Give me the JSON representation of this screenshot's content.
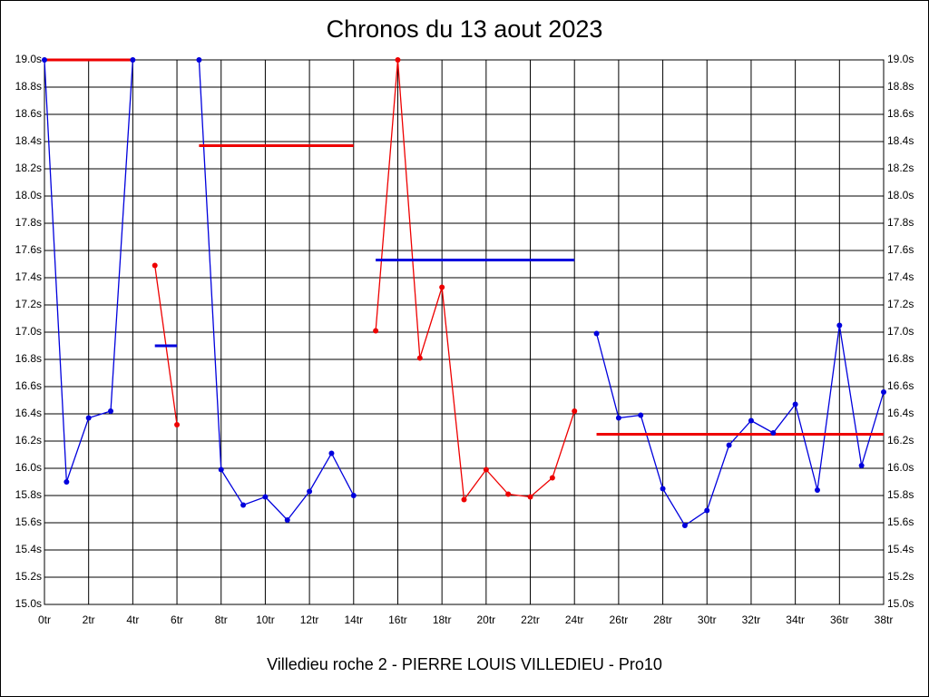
{
  "chart_data": {
    "type": "line",
    "title": "Chronos du 13 aout 2023",
    "xlabel": "Villedieu roche 2 - PIERRE LOUIS VILLEDIEU - Pro10",
    "x": [
      0,
      1,
      2,
      3,
      4,
      5,
      6,
      7,
      8,
      9,
      10,
      11,
      12,
      13,
      14,
      15,
      16,
      17,
      18,
      19,
      20,
      21,
      22,
      23,
      24,
      25,
      26,
      27,
      28,
      29,
      30,
      31,
      32,
      33,
      34,
      35,
      36,
      37,
      38
    ],
    "series": [
      {
        "color": "#0000dd",
        "values": [
          19.0,
          15.9,
          16.37,
          16.42,
          19.0,
          null,
          null,
          19.0,
          15.99,
          15.73,
          15.79,
          15.62,
          15.83,
          16.11,
          15.8,
          null,
          null,
          null,
          null,
          null,
          null,
          null,
          null,
          null,
          null,
          16.99,
          16.37,
          16.39,
          15.85,
          15.58,
          15.69,
          16.17,
          16.35,
          16.26,
          16.47,
          15.84,
          17.05,
          16.02,
          16.56
        ]
      },
      {
        "color": "#ee0000",
        "values": [
          null,
          null,
          null,
          null,
          null,
          17.49,
          16.32,
          null,
          null,
          null,
          null,
          null,
          null,
          null,
          null,
          17.01,
          19.0,
          16.81,
          17.33,
          15.77,
          15.99,
          15.81,
          15.79,
          15.93,
          16.42,
          null,
          null,
          null,
          null,
          null,
          null,
          null,
          null,
          null,
          null,
          null,
          null,
          null,
          null
        ]
      }
    ],
    "averages": [
      {
        "from": 0,
        "to": 4,
        "value": 19.0,
        "color": "#ee0000"
      },
      {
        "from": 5,
        "to": 6,
        "value": 16.9,
        "color": "#0000dd"
      },
      {
        "from": 7,
        "to": 14,
        "value": 18.37,
        "color": "#ee0000"
      },
      {
        "from": 15,
        "to": 24,
        "value": 17.53,
        "color": "#0000dd"
      },
      {
        "from": 25,
        "to": 38,
        "value": 16.25,
        "color": "#ee0000"
      }
    ],
    "xlim": [
      0,
      38
    ],
    "xticks": [
      {
        "value": 0,
        "label": "0tr"
      },
      {
        "value": 2,
        "label": "2tr"
      },
      {
        "value": 4,
        "label": "4tr"
      },
      {
        "value": 6,
        "label": "6tr"
      },
      {
        "value": 8,
        "label": "8tr"
      },
      {
        "value": 10,
        "label": "10tr"
      },
      {
        "value": 12,
        "label": "12tr"
      },
      {
        "value": 14,
        "label": "14tr"
      },
      {
        "value": 16,
        "label": "16tr"
      },
      {
        "value": 18,
        "label": "18tr"
      },
      {
        "value": 20,
        "label": "20tr"
      },
      {
        "value": 22,
        "label": "22tr"
      },
      {
        "value": 24,
        "label": "24tr"
      },
      {
        "value": 26,
        "label": "26tr"
      },
      {
        "value": 28,
        "label": "28tr"
      },
      {
        "value": 30,
        "label": "30tr"
      },
      {
        "value": 32,
        "label": "32tr"
      },
      {
        "value": 34,
        "label": "34tr"
      },
      {
        "value": 36,
        "label": "36tr"
      },
      {
        "value": 38,
        "label": "38tr"
      }
    ],
    "ylim": [
      15.0,
      19.0
    ],
    "yticks": [
      {
        "value": 15.0,
        "label": "15.0s"
      },
      {
        "value": 15.2,
        "label": "15.2s"
      },
      {
        "value": 15.4,
        "label": "15.4s"
      },
      {
        "value": 15.6,
        "label": "15.6s"
      },
      {
        "value": 15.8,
        "label": "15.8s"
      },
      {
        "value": 16.0,
        "label": "16.0s"
      },
      {
        "value": 16.2,
        "label": "16.2s"
      },
      {
        "value": 16.4,
        "label": "16.4s"
      },
      {
        "value": 16.6,
        "label": "16.6s"
      },
      {
        "value": 16.8,
        "label": "16.8s"
      },
      {
        "value": 17.0,
        "label": "17.0s"
      },
      {
        "value": 17.2,
        "label": "17.2s"
      },
      {
        "value": 17.4,
        "label": "17.4s"
      },
      {
        "value": 17.6,
        "label": "17.6s"
      },
      {
        "value": 17.8,
        "label": "17.8s"
      },
      {
        "value": 18.0,
        "label": "18.0s"
      },
      {
        "value": 18.2,
        "label": "18.2s"
      },
      {
        "value": 18.4,
        "label": "18.4s"
      },
      {
        "value": 18.6,
        "label": "18.6s"
      },
      {
        "value": 18.8,
        "label": "18.8s"
      },
      {
        "value": 19.0,
        "label": "19.0s"
      }
    ],
    "grid": true
  }
}
